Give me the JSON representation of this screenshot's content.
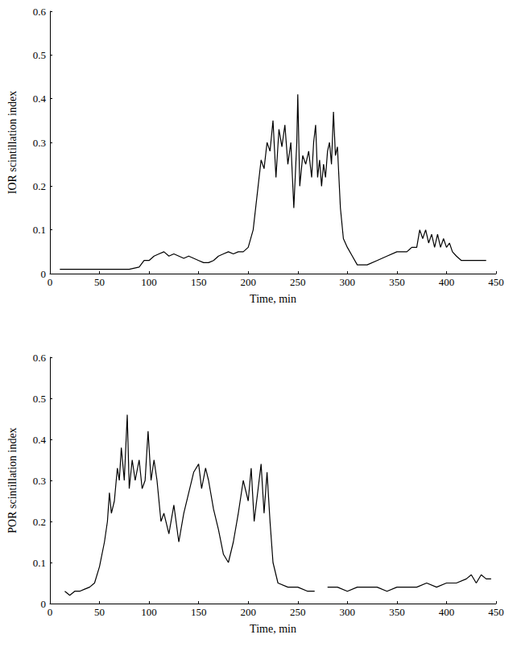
{
  "chart_data": [
    {
      "type": "line",
      "y_label": "IOR scintillation index",
      "x_label": "Time, min",
      "color": "#000000",
      "grid": false,
      "line_style": "solid",
      "marker": "none",
      "xlim": [
        0,
        450
      ],
      "xticks": [
        0,
        50,
        100,
        150,
        200,
        250,
        300,
        350,
        400,
        450
      ],
      "ylim": [
        0,
        0.6
      ],
      "yticks": [
        0,
        0.1,
        0.2,
        0.3,
        0.4,
        0.5,
        0.6
      ],
      "x": [
        10,
        20,
        30,
        40,
        50,
        60,
        70,
        80,
        90,
        95,
        100,
        105,
        110,
        115,
        120,
        125,
        130,
        135,
        140,
        145,
        150,
        155,
        160,
        165,
        170,
        175,
        180,
        185,
        190,
        195,
        200,
        205,
        210,
        213,
        216,
        219,
        222,
        225,
        228,
        231,
        234,
        237,
        240,
        243,
        246,
        249,
        250,
        252,
        255,
        258,
        261,
        264,
        266,
        268,
        270,
        272,
        274,
        276,
        278,
        280,
        282,
        284,
        286,
        288,
        290,
        293,
        296,
        300,
        305,
        310,
        320,
        330,
        340,
        350,
        360,
        365,
        370,
        373,
        376,
        379,
        382,
        385,
        388,
        391,
        394,
        397,
        400,
        403,
        406,
        410,
        415,
        420,
        430,
        440
      ],
      "values": [
        0.01,
        0.01,
        0.01,
        0.01,
        0.01,
        0.01,
        0.01,
        0.01,
        0.015,
        0.03,
        0.03,
        0.04,
        0.045,
        0.05,
        0.04,
        0.045,
        0.04,
        0.035,
        0.04,
        0.035,
        0.03,
        0.025,
        0.025,
        0.03,
        0.04,
        0.045,
        0.05,
        0.045,
        0.05,
        0.05,
        0.06,
        0.1,
        0.2,
        0.26,
        0.24,
        0.3,
        0.28,
        0.35,
        0.22,
        0.33,
        0.29,
        0.34,
        0.25,
        0.3,
        0.15,
        0.3,
        0.41,
        0.2,
        0.27,
        0.25,
        0.28,
        0.22,
        0.3,
        0.34,
        0.22,
        0.26,
        0.2,
        0.25,
        0.22,
        0.28,
        0.3,
        0.25,
        0.37,
        0.27,
        0.29,
        0.15,
        0.08,
        0.06,
        0.04,
        0.02,
        0.02,
        0.03,
        0.04,
        0.05,
        0.05,
        0.06,
        0.06,
        0.1,
        0.08,
        0.1,
        0.07,
        0.09,
        0.06,
        0.09,
        0.06,
        0.08,
        0.06,
        0.07,
        0.05,
        0.04,
        0.03,
        0.03,
        0.03,
        0.03
      ]
    },
    {
      "type": "line",
      "y_label": "POR scintillation index",
      "x_label": "Time, min",
      "color": "#000000",
      "grid": false,
      "line_style": "solid",
      "marker": "none",
      "xlim": [
        0,
        450
      ],
      "xticks": [
        0,
        50,
        100,
        150,
        200,
        250,
        300,
        350,
        400,
        450
      ],
      "ylim": [
        0,
        0.6
      ],
      "yticks": [
        0,
        0.1,
        0.2,
        0.3,
        0.4,
        0.5,
        0.6
      ],
      "x": [
        15,
        20,
        25,
        30,
        35,
        40,
        45,
        50,
        55,
        58,
        60,
        62,
        65,
        68,
        70,
        72,
        75,
        78,
        80,
        83,
        86,
        90,
        93,
        96,
        99,
        102,
        105,
        108,
        112,
        115,
        120,
        125,
        130,
        135,
        140,
        145,
        150,
        153,
        157,
        160,
        165,
        170,
        175,
        180,
        185,
        190,
        195,
        200,
        203,
        206,
        210,
        213,
        216,
        219,
        222,
        225,
        230,
        240,
        250,
        260,
        267,
        272,
        280,
        290,
        300,
        310,
        320,
        330,
        340,
        350,
        360,
        370,
        380,
        390,
        400,
        410,
        420,
        425,
        430,
        435,
        440,
        445
      ],
      "values": [
        0.03,
        0.02,
        0.03,
        0.03,
        0.035,
        0.04,
        0.05,
        0.09,
        0.15,
        0.2,
        0.27,
        0.22,
        0.25,
        0.33,
        0.3,
        0.38,
        0.3,
        0.46,
        0.28,
        0.35,
        0.3,
        0.35,
        0.28,
        0.3,
        0.42,
        0.3,
        0.35,
        0.3,
        0.2,
        0.22,
        0.17,
        0.24,
        0.15,
        0.22,
        0.27,
        0.32,
        0.34,
        0.28,
        0.33,
        0.3,
        0.23,
        0.18,
        0.12,
        0.1,
        0.15,
        0.22,
        0.3,
        0.25,
        0.33,
        0.2,
        0.28,
        0.34,
        0.22,
        0.32,
        0.2,
        0.1,
        0.05,
        0.04,
        0.04,
        0.03,
        0.03,
        null,
        0.04,
        0.04,
        0.03,
        0.04,
        0.04,
        0.04,
        0.03,
        0.04,
        0.04,
        0.04,
        0.05,
        0.04,
        0.05,
        0.05,
        0.06,
        0.07,
        0.05,
        0.07,
        0.06,
        0.06
      ]
    }
  ]
}
